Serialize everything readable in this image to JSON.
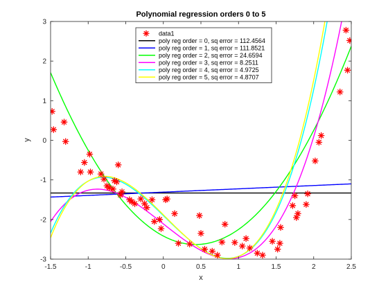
{
  "chart_data": {
    "type": "scatter",
    "title": "Polynomial regression orders 0 to 5",
    "xlabel": "x",
    "ylabel": "y",
    "xlim": [
      -1.5,
      2.5
    ],
    "ylim": [
      -3,
      3
    ],
    "xticks": [
      -1.5,
      -1,
      -0.5,
      0,
      0.5,
      1,
      1.5,
      2,
      2.5
    ],
    "xtick_labels": [
      "-1.5",
      "-1",
      "-0.5",
      "0",
      "0.5",
      "1",
      "1.5",
      "2",
      "2.5"
    ],
    "yticks": [
      -3,
      -2,
      -1,
      0,
      1,
      2,
      3
    ],
    "ytick_labels": [
      "-3",
      "-2",
      "-1",
      "0",
      "1",
      "2",
      "3"
    ],
    "grid": false,
    "legend_position": "top-center",
    "scatter": {
      "name": "data1",
      "color": "#ff0000",
      "marker": "asterisk",
      "points": [
        [
          -1.48,
          0.73
        ],
        [
          -1.46,
          0.27
        ],
        [
          -1.32,
          0.46
        ],
        [
          -1.3,
          -0.03
        ],
        [
          -1.1,
          -0.8
        ],
        [
          -1.05,
          -0.56
        ],
        [
          -0.98,
          -0.35
        ],
        [
          -0.97,
          -0.8
        ],
        [
          -0.83,
          -0.85
        ],
        [
          -0.79,
          -0.98
        ],
        [
          -0.75,
          -1.15
        ],
        [
          -0.72,
          -1.2
        ],
        [
          -0.67,
          -1.23
        ],
        [
          -0.65,
          -1.02
        ],
        [
          -0.62,
          -1.05
        ],
        [
          -0.6,
          -0.62
        ],
        [
          -0.57,
          -1.38
        ],
        [
          -0.55,
          -1.3
        ],
        [
          -0.45,
          -1.5
        ],
        [
          -0.42,
          -1.55
        ],
        [
          -0.38,
          -1.6
        ],
        [
          -0.3,
          -1.48
        ],
        [
          -0.25,
          -1.6
        ],
        [
          -0.22,
          -1.7
        ],
        [
          -0.15,
          -1.5
        ],
        [
          -0.12,
          -2.05
        ],
        [
          -0.05,
          -2.0
        ],
        [
          -0.03,
          -2.23
        ],
        [
          0.03,
          -1.5
        ],
        [
          0.05,
          -1.48
        ],
        [
          0.15,
          -1.85
        ],
        [
          0.2,
          -2.6
        ],
        [
          0.35,
          -2.62
        ],
        [
          0.48,
          -1.9
        ],
        [
          0.5,
          -2.35
        ],
        [
          0.55,
          -2.75
        ],
        [
          0.65,
          -2.8
        ],
        [
          0.72,
          -2.9
        ],
        [
          0.78,
          -2.57
        ],
        [
          0.82,
          -2.12
        ],
        [
          0.95,
          -2.58
        ],
        [
          1.05,
          -2.67
        ],
        [
          1.1,
          -2.48
        ],
        [
          1.15,
          -2.72
        ],
        [
          1.25,
          -2.85
        ],
        [
          1.32,
          -2.9
        ],
        [
          1.45,
          -2.55
        ],
        [
          1.52,
          -2.75
        ],
        [
          1.55,
          -2.6
        ],
        [
          1.56,
          -2.2
        ],
        [
          1.72,
          -1.65
        ],
        [
          1.75,
          -1.4
        ],
        [
          1.77,
          -1.95
        ],
        [
          1.79,
          -1.85
        ],
        [
          1.9,
          -1.62
        ],
        [
          1.92,
          -1.35
        ],
        [
          2.02,
          -0.52
        ],
        [
          2.07,
          -0.05
        ],
        [
          2.1,
          0.12
        ],
        [
          2.35,
          1.22
        ],
        [
          2.43,
          2.78
        ],
        [
          2.45,
          1.77
        ],
        [
          2.48,
          2.52
        ]
      ]
    },
    "series": [
      {
        "name": "poly reg order = 0, sq error = 112.4564",
        "color": "#000000",
        "coefficients": [
          -1.33
        ]
      },
      {
        "name": "poly reg order = 1, sq error = 111.8521",
        "color": "#0000ff",
        "coefficients": [
          -1.3083,
          0.0833
        ]
      },
      {
        "name": "poly reg order = 2, sq error = 24.6594",
        "color": "#00ff00",
        "coefficients": [
          -2.4167,
          -1.0,
          1.1667
        ]
      },
      {
        "name": "poly reg order = 3, sq error = 8.2511",
        "color": "#ff00ff",
        "coefficients": [
          -2.11,
          -1.5,
          0.0,
          0.65
        ]
      },
      {
        "name": "poly reg order = 4, sq error = 4.9725",
        "color": "#00ffff",
        "coefficients": [
          -1.9,
          -1.85,
          -0.08,
          0.9,
          0.0
        ]
      },
      {
        "name": "poly reg order = 5, sq error = 4.8707",
        "color": "#ffff00",
        "coefficients": [
          -1.88,
          -1.9,
          -0.1,
          0.95,
          0.0,
          0.0
        ]
      }
    ]
  }
}
